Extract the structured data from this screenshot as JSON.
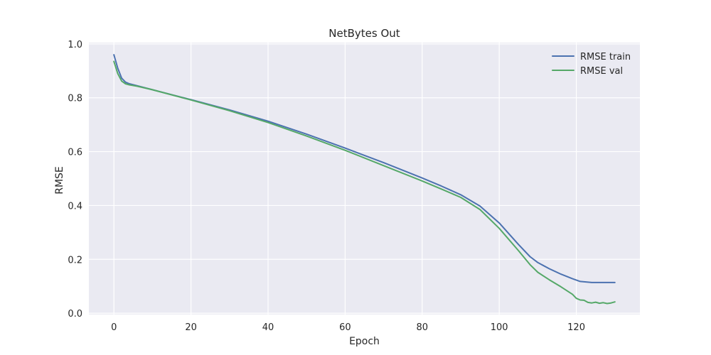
{
  "chart_data": {
    "type": "line",
    "title": "NetBytes Out",
    "xlabel": "Epoch",
    "ylabel": "RMSE",
    "xlim": [
      -6.5,
      136.5
    ],
    "ylim": [
      -0.005,
      1.005
    ],
    "xticks": [
      0,
      20,
      40,
      60,
      80,
      100,
      120
    ],
    "yticks": [
      0.0,
      0.2,
      0.4,
      0.6,
      0.8,
      1.0
    ],
    "xtick_labels": [
      "0",
      "20",
      "40",
      "60",
      "80",
      "100",
      "120"
    ],
    "ytick_labels": [
      "0.0",
      "0.2",
      "0.4",
      "0.6",
      "0.8",
      "1.0"
    ],
    "grid": true,
    "legend_position": "top-right",
    "background": "#eaeaf2",
    "series": [
      {
        "name": "RMSE train",
        "color": "#4c72b0",
        "x": [
          0,
          1,
          2,
          3,
          4,
          6,
          10,
          20,
          30,
          40,
          50,
          60,
          70,
          80,
          85,
          90,
          95,
          100,
          105,
          108,
          110,
          113,
          116,
          119,
          121,
          124,
          127,
          130
        ],
        "y": [
          0.96,
          0.91,
          0.873,
          0.858,
          0.852,
          0.845,
          0.83,
          0.793,
          0.755,
          0.713,
          0.665,
          0.613,
          0.559,
          0.502,
          0.472,
          0.44,
          0.398,
          0.335,
          0.255,
          0.21,
          0.188,
          0.165,
          0.145,
          0.128,
          0.118,
          0.114,
          0.114,
          0.114
        ]
      },
      {
        "name": "RMSE val",
        "color": "#55a868",
        "x": [
          0,
          1,
          2,
          3,
          4,
          6,
          10,
          20,
          30,
          40,
          50,
          60,
          70,
          80,
          85,
          90,
          95,
          100,
          105,
          108,
          110,
          113,
          116,
          119,
          120,
          121,
          122,
          123,
          124,
          125,
          126,
          127,
          128,
          129,
          130
        ],
        "y": [
          0.935,
          0.89,
          0.862,
          0.852,
          0.848,
          0.843,
          0.83,
          0.792,
          0.752,
          0.708,
          0.658,
          0.605,
          0.548,
          0.491,
          0.461,
          0.43,
          0.385,
          0.315,
          0.232,
          0.18,
          0.152,
          0.124,
          0.098,
          0.07,
          0.055,
          0.049,
          0.048,
          0.04,
          0.038,
          0.041,
          0.037,
          0.039,
          0.036,
          0.038,
          0.042
        ]
      }
    ]
  }
}
